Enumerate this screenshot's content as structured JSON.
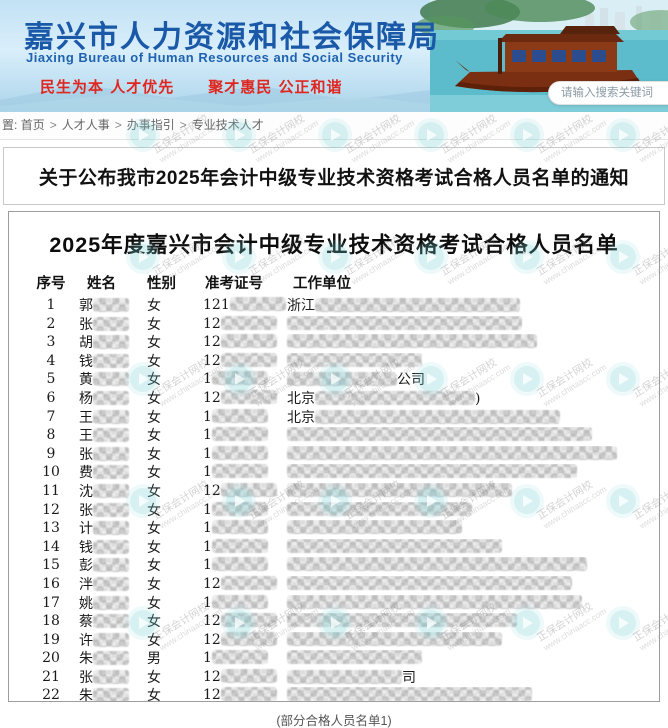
{
  "header": {
    "org_name_cn": "嘉兴市人力资源和社会保障局",
    "org_name_en": "Jiaxing Bureau of Human Resources and Social Security",
    "slogan_left": "民生为本 人才优先",
    "slogan_right": "聚才惠民 公正和谐",
    "search_placeholder": "请输入搜索关键词",
    "colors": {
      "title_blue": "#1a58a8",
      "slogan_red": "#e02620",
      "water_teal": "#5cbccb",
      "boat_red": "#7a2f12"
    }
  },
  "breadcrumb": {
    "prefix": "置:",
    "separator": ">",
    "items": [
      "首页",
      "人才人事",
      "办事指引",
      "专业技术人才"
    ]
  },
  "notice": {
    "title": "关于公布我市2025年会计中级专业技术资格考试合格人员名单的通知"
  },
  "list": {
    "title": "2025年度嘉兴市会计中级专业技术资格考试合格人员名单",
    "columns": [
      "序号",
      "姓名",
      "性别",
      "准考证号",
      "工作单位"
    ],
    "rows": [
      {
        "no": "1",
        "name": "郭",
        "gender": "女",
        "ticket": "121",
        "unit_pre": "浙江",
        "unit_post": "",
        "unit_w": 205
      },
      {
        "no": "2",
        "name": "张",
        "gender": "女",
        "ticket": "12",
        "unit_pre": "",
        "unit_post": "",
        "unit_w": 235
      },
      {
        "no": "3",
        "name": "胡",
        "gender": "女",
        "ticket": "12",
        "unit_pre": "",
        "unit_post": "",
        "unit_w": 250
      },
      {
        "no": "4",
        "name": "钱",
        "gender": "女",
        "ticket": "12",
        "unit_pre": "",
        "unit_post": "",
        "unit_w": 135
      },
      {
        "no": "5",
        "name": "黄",
        "gender": "女",
        "ticket": "1",
        "unit_pre": "",
        "unit_post": "公司",
        "unit_w": 110
      },
      {
        "no": "6",
        "name": "杨",
        "gender": "女",
        "ticket": "12",
        "unit_pre": "北京",
        "unit_post": ")",
        "unit_w": 160
      },
      {
        "no": "7",
        "name": "王",
        "gender": "女",
        "ticket": "1",
        "unit_pre": "北京",
        "unit_post": "",
        "unit_w": 245
      },
      {
        "no": "8",
        "name": "王",
        "gender": "女",
        "ticket": "1",
        "unit_pre": "",
        "unit_post": "",
        "unit_w": 305
      },
      {
        "no": "9",
        "name": "张",
        "gender": "女",
        "ticket": "1",
        "unit_pre": "",
        "unit_post": "",
        "unit_w": 330
      },
      {
        "no": "10",
        "name": "费",
        "gender": "女",
        "ticket": "1",
        "unit_pre": "",
        "unit_post": "",
        "unit_w": 290
      },
      {
        "no": "11",
        "name": "沈",
        "gender": "女",
        "ticket": "12",
        "unit_pre": "",
        "unit_post": "",
        "unit_w": 225
      },
      {
        "no": "12",
        "name": "张",
        "gender": "女",
        "ticket": "1",
        "unit_pre": "",
        "unit_post": "",
        "unit_w": 185
      },
      {
        "no": "13",
        "name": "计",
        "gender": "女",
        "ticket": "1",
        "unit_pre": "",
        "unit_post": "",
        "unit_w": 175
      },
      {
        "no": "14",
        "name": "钱",
        "gender": "女",
        "ticket": "1",
        "unit_pre": "",
        "unit_post": "",
        "unit_w": 215
      },
      {
        "no": "15",
        "name": "彭",
        "gender": "女",
        "ticket": "1",
        "unit_pre": "",
        "unit_post": "",
        "unit_w": 300
      },
      {
        "no": "16",
        "name": "泮",
        "gender": "女",
        "ticket": "12",
        "unit_pre": "",
        "unit_post": "",
        "unit_w": 285
      },
      {
        "no": "17",
        "name": "姚",
        "gender": "女",
        "ticket": "1",
        "unit_pre": "",
        "unit_post": "",
        "unit_w": 295
      },
      {
        "no": "18",
        "name": "蔡",
        "gender": "女",
        "ticket": "12",
        "unit_pre": "",
        "unit_post": "",
        "unit_w": 230
      },
      {
        "no": "19",
        "name": "许",
        "gender": "女",
        "ticket": "12",
        "unit_pre": "",
        "unit_post": "",
        "unit_w": 215
      },
      {
        "no": "20",
        "name": "朱",
        "gender": "男",
        "ticket": "1",
        "unit_pre": "",
        "unit_post": "",
        "unit_w": 135
      },
      {
        "no": "21",
        "name": "张",
        "gender": "女",
        "ticket": "12",
        "unit_pre": "",
        "unit_post": "司",
        "unit_w": 115
      },
      {
        "no": "22",
        "name": "朱",
        "gender": "女",
        "ticket": "12",
        "unit_pre": "",
        "unit_post": "",
        "unit_w": 245
      }
    ]
  },
  "caption": "(部分合格人员名单1)",
  "watermark": {
    "text": "正保会计网校",
    "url": "www.chinaacc.com"
  }
}
